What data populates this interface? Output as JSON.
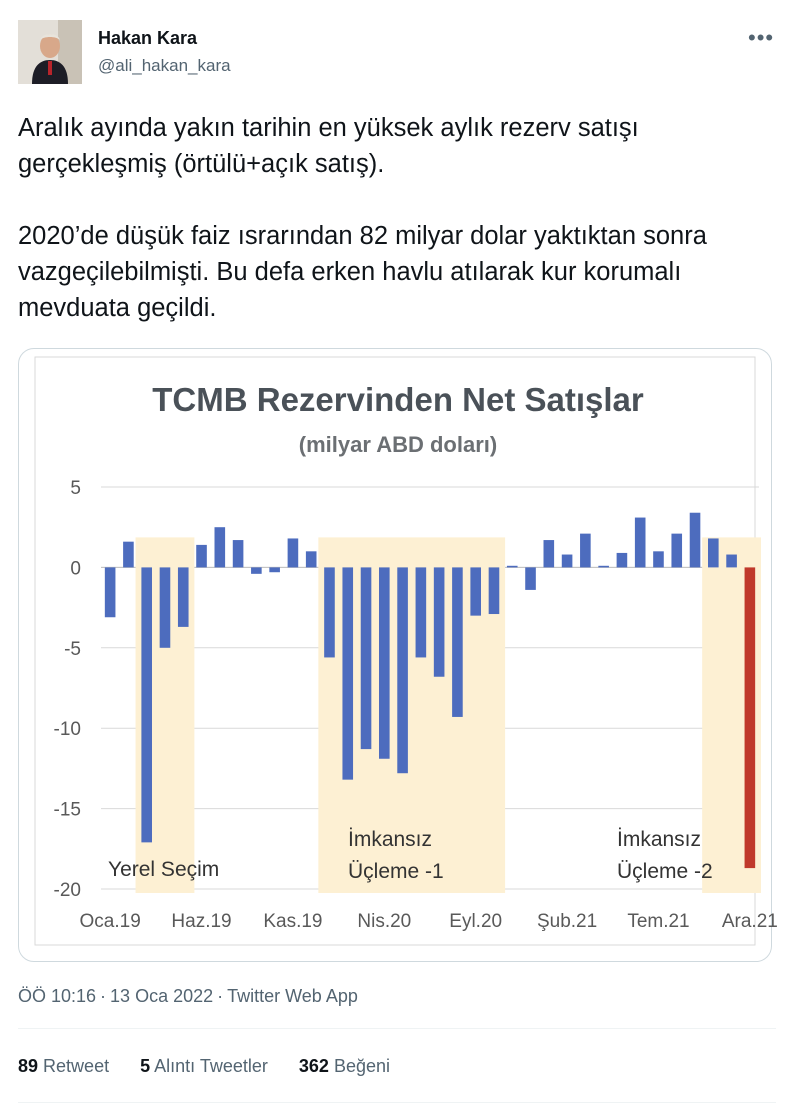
{
  "tweet": {
    "author_name": "Hakan Kara",
    "author_handle": "@ali_hakan_kara",
    "more_icon": "more-horizontal-icon",
    "text_paragraphs": [
      "Aralık ayında yakın tarihin en yüksek aylık rezerv satışı gerçekleşmiş (örtülü+açık satış).",
      "2020’de düşük faiz ısrarından 82 milyar dolar yaktıktan sonra vazgeçilebilmişti. Bu defa erken havlu atılarak kur korumalı mevduata geçildi."
    ],
    "time": "ÖÖ 10:16",
    "date": "13 Oca 2022",
    "source": "Twitter Web App",
    "stats": {
      "retweets_count": "89",
      "retweets_label": "Retweet",
      "quotes_count": "5",
      "quotes_label": "Alıntı Tweetler",
      "likes_count": "362",
      "likes_label": "Beğeni"
    }
  },
  "chart_data": {
    "type": "bar",
    "title": "TCMB Rezervinden Net Satışlar",
    "subtitle": "(milyar ABD doları)",
    "ylim": [
      -20,
      5
    ],
    "yticks": [
      5,
      0,
      -5,
      -10,
      -15,
      -20
    ],
    "grid": true,
    "x_tick_labels": [
      "Oca.19",
      "Haz.19",
      "Kas.19",
      "Nis.20",
      "Eyl.20",
      "Şub.21",
      "Tem.21",
      "Ara.21"
    ],
    "x_tick_indices": [
      0,
      5,
      10,
      15,
      20,
      25,
      30,
      35
    ],
    "categories": [
      "2019-01",
      "2019-02",
      "2019-03",
      "2019-04",
      "2019-05",
      "2019-06",
      "2019-07",
      "2019-08",
      "2019-09",
      "2019-10",
      "2019-11",
      "2019-12",
      "2020-01",
      "2020-02",
      "2020-03",
      "2020-04",
      "2020-05",
      "2020-06",
      "2020-07",
      "2020-08",
      "2020-09",
      "2020-10",
      "2020-11",
      "2020-12",
      "2021-01",
      "2021-02",
      "2021-03",
      "2021-04",
      "2021-05",
      "2021-06",
      "2021-07",
      "2021-08",
      "2021-09",
      "2021-10",
      "2021-11",
      "2021-12"
    ],
    "values": [
      -3.1,
      1.6,
      -17.1,
      -5.0,
      -3.7,
      1.4,
      2.5,
      1.7,
      -0.4,
      -0.3,
      1.8,
      1.0,
      -5.6,
      -13.2,
      -11.3,
      -11.9,
      -12.8,
      -5.6,
      -6.8,
      -9.3,
      -3.0,
      -2.9,
      0.1,
      -1.4,
      1.7,
      0.8,
      2.1,
      0.1,
      0.9,
      3.1,
      1.0,
      2.1,
      3.4,
      1.8,
      0.8,
      -18.7
    ],
    "bar_color": "#4d6cbe",
    "highlight_color": "#c0392b",
    "highlight_index": 35,
    "shade_color": "#fdf0d3",
    "shaded_periods": [
      {
        "start_index": 2,
        "end_index": 5,
        "label": "Yerel Seçim"
      },
      {
        "start_index": 12,
        "end_index": 22,
        "label": "İmkansız Üçleme -1"
      },
      {
        "start_index": 33,
        "end_index": 36,
        "label": "İmkansız Üçleme -2"
      }
    ],
    "annotations": [
      {
        "lines": [
          "Yerel Seçim"
        ]
      },
      {
        "lines": [
          "İmkansız",
          "Üçleme -1"
        ]
      },
      {
        "lines": [
          "İmkansız",
          "Üçleme -2"
        ]
      }
    ]
  }
}
